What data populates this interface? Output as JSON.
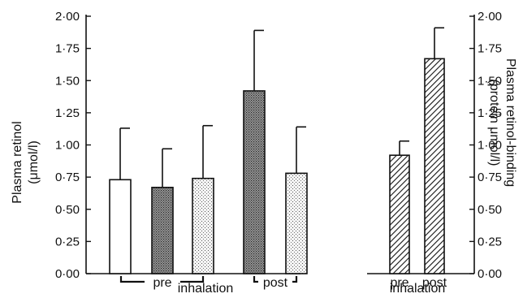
{
  "chart_data": [
    {
      "type": "bar",
      "ylabel": "Plasma retinol (μmol/l)",
      "ylim": [
        0,
        2
      ],
      "yticks": [
        "0·00",
        "0·25",
        "0·50",
        "0·75",
        "1·00",
        "1·25",
        "1·50",
        "1·75",
        "2·00"
      ],
      "series": [
        {
          "group": "pre",
          "fill": "white",
          "value": 0.73,
          "error": 0.4
        },
        {
          "group": "pre",
          "fill": "dark-dotted",
          "value": 0.67,
          "error": 0.3
        },
        {
          "group": "pre",
          "fill": "light-dotted",
          "value": 0.74,
          "error": 0.41
        },
        {
          "group": "post",
          "fill": "dark-dotted",
          "value": 1.42,
          "error": 0.47
        },
        {
          "group": "post",
          "fill": "light-dotted",
          "value": 0.78,
          "error": 0.36
        }
      ],
      "group_labels": {
        "pre": "pre",
        "post": "post",
        "caption": "inhalation"
      }
    },
    {
      "type": "bar",
      "ylabel": "Plasma retinol-binding protein (μmol/l)",
      "ylim": [
        0,
        2
      ],
      "yticks": [
        "0·00",
        "0·25",
        "0·50",
        "0·75",
        "1·00",
        "1·25",
        "1·50",
        "1·75",
        "2·00"
      ],
      "categories": [
        "pre",
        "post"
      ],
      "values": [
        0.92,
        1.67
      ],
      "errors": [
        0.11,
        0.24
      ],
      "fill": "hatched",
      "caption": "inhalation"
    }
  ],
  "colors": {
    "ink": "#111111",
    "bar_dark": "#777777",
    "bar_light": "#e6e6e6"
  }
}
